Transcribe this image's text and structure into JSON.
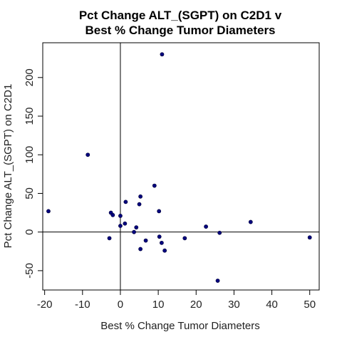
{
  "chart_data": {
    "type": "scatter",
    "title_lines": [
      "Pct Change ALT_(SGPT) on C2D1 v",
      "Best % Change Tumor Diameters"
    ],
    "xlabel": "Best % Change Tumor Diameters",
    "ylabel": "Pct Change ALT_(SGPT) on C2D1",
    "xlim": [
      -20.5,
      52.5
    ],
    "ylim": [
      -75,
      245
    ],
    "x_ticks": [
      -20,
      -10,
      0,
      10,
      20,
      30,
      40,
      50
    ],
    "y_ticks": [
      -50,
      0,
      50,
      100,
      150,
      200
    ],
    "reference_lines": {
      "x": 0,
      "y": 0
    },
    "grid": false,
    "point_color": "#00007f",
    "points": [
      {
        "x": -19.0,
        "y": 27
      },
      {
        "x": -8.6,
        "y": 100
      },
      {
        "x": -2.9,
        "y": -8
      },
      {
        "x": -2.5,
        "y": 25
      },
      {
        "x": -2.0,
        "y": 22
      },
      {
        "x": 0.0,
        "y": 21
      },
      {
        "x": 0.0,
        "y": 8
      },
      {
        "x": 1.2,
        "y": 11
      },
      {
        "x": 1.4,
        "y": 39
      },
      {
        "x": 3.6,
        "y": 0
      },
      {
        "x": 4.2,
        "y": 6
      },
      {
        "x": 5.0,
        "y": 36
      },
      {
        "x": 5.3,
        "y": 46
      },
      {
        "x": 5.3,
        "y": -22
      },
      {
        "x": 6.7,
        "y": -11
      },
      {
        "x": 9.0,
        "y": 60
      },
      {
        "x": 10.2,
        "y": 27
      },
      {
        "x": 10.3,
        "y": -6
      },
      {
        "x": 10.9,
        "y": -14
      },
      {
        "x": 11.0,
        "y": 230
      },
      {
        "x": 11.7,
        "y": -24
      },
      {
        "x": 17.0,
        "y": -8
      },
      {
        "x": 22.6,
        "y": 7
      },
      {
        "x": 25.7,
        "y": -63
      },
      {
        "x": 26.2,
        "y": -1
      },
      {
        "x": 34.4,
        "y": 13
      },
      {
        "x": 50.0,
        "y": -7
      }
    ]
  }
}
